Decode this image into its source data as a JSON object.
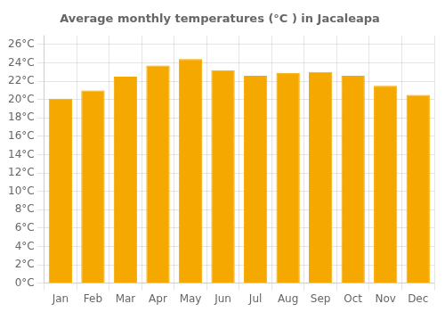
{
  "chart_data": {
    "type": "bar",
    "title": "Average monthly temperatures (°C ) in Jacaleapa",
    "categories": [
      "Jan",
      "Feb",
      "Mar",
      "Apr",
      "May",
      "Jun",
      "Jul",
      "Aug",
      "Sep",
      "Oct",
      "Nov",
      "Dec"
    ],
    "values": [
      20.1,
      21.0,
      22.5,
      23.7,
      24.4,
      23.2,
      22.6,
      22.9,
      23.0,
      22.6,
      21.5,
      20.5
    ],
    "color": "#F5A800",
    "ylim": [
      0,
      27
    ],
    "yticks": [
      {
        "value": 0,
        "label": "0°C"
      },
      {
        "value": 2,
        "label": "2°C"
      },
      {
        "value": 4,
        "label": "4°C"
      },
      {
        "value": 6,
        "label": "6°C"
      },
      {
        "value": 8,
        "label": "8°C"
      },
      {
        "value": 10,
        "label": "10°C"
      },
      {
        "value": 12,
        "label": "12°C"
      },
      {
        "value": 14,
        "label": "14°C"
      },
      {
        "value": 16,
        "label": "16°C"
      },
      {
        "value": 18,
        "label": "18°C"
      },
      {
        "value": 20,
        "label": "20°C"
      },
      {
        "value": 22,
        "label": "22°C"
      },
      {
        "value": 24,
        "label": "24°C"
      },
      {
        "value": 26,
        "label": "26°C"
      }
    ],
    "grid": true
  }
}
